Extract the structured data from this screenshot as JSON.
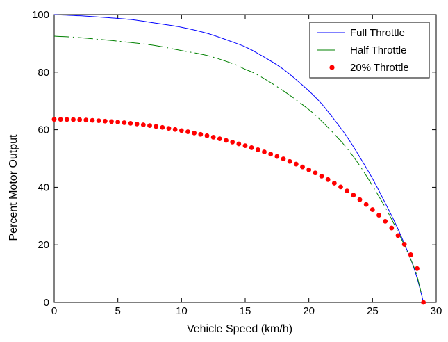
{
  "chart_data": {
    "type": "line",
    "title": "",
    "xlabel": "Vehicle Speed (km/h)",
    "ylabel": "Percent Motor Output",
    "xlim": [
      0,
      30
    ],
    "ylim": [
      0,
      100
    ],
    "xticks": [
      0,
      5,
      10,
      15,
      20,
      25,
      30
    ],
    "yticks": [
      0,
      20,
      40,
      60,
      80,
      100
    ],
    "grid": false,
    "legend_position": "top-right",
    "series": [
      {
        "name": "Full Throttle",
        "style": "solid",
        "color": "#0000ff",
        "x": [
          0,
          2,
          4,
          6,
          8,
          10,
          12,
          14,
          15,
          16,
          18,
          20,
          21,
          22,
          23,
          24,
          25,
          26,
          27,
          28,
          28.5,
          29
        ],
        "y": [
          100,
          99.6,
          99,
          98.3,
          97,
          95.6,
          93.5,
          90.5,
          88.8,
          86.5,
          81,
          73.5,
          69,
          63.5,
          57.5,
          50.5,
          43,
          34.5,
          25.5,
          15,
          8.5,
          0
        ]
      },
      {
        "name": "Half Throttle",
        "style": "dash-dot",
        "color": "#008000",
        "x": [
          0,
          1,
          2,
          4,
          6,
          8,
          10,
          12,
          14,
          15,
          16,
          18,
          20,
          21,
          22,
          23,
          24,
          25,
          26,
          27,
          28,
          28.5,
          29
        ],
        "y": [
          92.5,
          92.3,
          92,
          91.2,
          90.3,
          89.2,
          87.5,
          85.8,
          83,
          81,
          79,
          73.5,
          67,
          63,
          58.5,
          53.5,
          47.5,
          40.5,
          33,
          24.5,
          15,
          9,
          0
        ]
      },
      {
        "name": "20% Throttle",
        "style": "markers",
        "color": "#ff0000",
        "x": [
          0,
          29
        ],
        "y": [
          63.6,
          0
        ]
      }
    ]
  }
}
